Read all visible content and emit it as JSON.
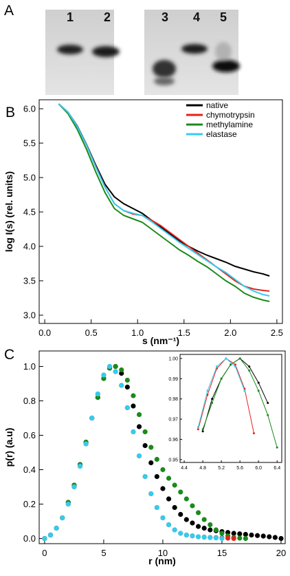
{
  "figure": {
    "panel_labels": [
      "A",
      "B",
      "C"
    ],
    "lanes": [
      "1",
      "2",
      "3",
      "4",
      "5"
    ]
  },
  "chart_data": [
    {
      "type": "line",
      "xlabel": "s (nm⁻¹)",
      "ylabel": "log I(s) (rel. units)",
      "x": [
        0.15,
        0.25,
        0.35,
        0.45,
        0.55,
        0.65,
        0.75,
        0.85,
        0.95,
        1.05,
        1.15,
        1.25,
        1.35,
        1.45,
        1.55,
        1.65,
        1.75,
        1.85,
        1.95,
        2.05,
        2.15,
        2.25,
        2.35,
        2.42
      ],
      "series": [
        {
          "name": "native",
          "color": "#000000",
          "values": [
            6.07,
            5.95,
            5.75,
            5.48,
            5.18,
            4.9,
            4.72,
            4.62,
            4.55,
            4.48,
            4.38,
            4.28,
            4.18,
            4.08,
            4.0,
            3.93,
            3.87,
            3.82,
            3.77,
            3.71,
            3.67,
            3.63,
            3.6,
            3.57
          ]
        },
        {
          "name": "chymotrypsin",
          "color": "#e8201a",
          "values": [
            6.07,
            5.95,
            5.74,
            5.47,
            5.16,
            4.86,
            4.62,
            4.52,
            4.47,
            4.45,
            4.38,
            4.3,
            4.2,
            4.1,
            4.0,
            3.9,
            3.8,
            3.7,
            3.6,
            3.5,
            3.42,
            3.38,
            3.36,
            3.35
          ]
        },
        {
          "name": "methylamine",
          "color": "#1a8a1a",
          "values": [
            6.07,
            5.93,
            5.7,
            5.41,
            5.08,
            4.78,
            4.55,
            4.45,
            4.4,
            4.35,
            4.25,
            4.15,
            4.05,
            3.95,
            3.87,
            3.78,
            3.7,
            3.6,
            3.5,
            3.42,
            3.32,
            3.26,
            3.22,
            3.2
          ]
        },
        {
          "name": "elastase",
          "color": "#33ccee",
          "values": [
            6.07,
            5.95,
            5.74,
            5.47,
            5.15,
            4.86,
            4.62,
            4.52,
            4.48,
            4.45,
            4.36,
            4.26,
            4.16,
            4.06,
            3.97,
            3.88,
            3.79,
            3.7,
            3.62,
            3.52,
            3.42,
            3.35,
            3.3,
            3.28
          ]
        }
      ],
      "xlim": [
        -0.06,
        2.56
      ],
      "ylim": [
        2.88,
        6.13
      ],
      "xticks": [
        {
          "value": 0,
          "label": "0.0"
        },
        0.5,
        {
          "value": 1,
          "label": "1.0"
        },
        1.5,
        {
          "value": 2,
          "label": "2.0"
        },
        2.5
      ],
      "yticks": [
        {
          "value": 3,
          "label": "3.0"
        },
        3.5,
        {
          "value": 4,
          "label": "4.0"
        },
        4.5,
        {
          "value": 5,
          "label": "5.0"
        },
        5.5,
        {
          "value": 6,
          "label": "6.0"
        }
      ],
      "legend": "upper right"
    },
    {
      "type": "scatter",
      "xlabel": "r (nm)",
      "ylabel": "p(r) (a.u)",
      "series": [
        {
          "color": "#000000",
          "x": [
            0,
            0.5,
            1,
            1.5,
            2,
            2.5,
            3,
            3.5,
            4,
            4.5,
            5,
            5.5,
            6,
            6.5,
            7,
            7.5,
            8,
            8.5,
            9,
            9.5,
            10,
            10.5,
            11,
            11.5,
            12,
            12.5,
            13,
            13.5,
            14,
            14.5,
            15,
            15.5,
            16,
            16.5,
            17,
            17.5,
            18,
            18.5,
            19,
            19.5,
            20
          ],
          "values": [
            0,
            0.02,
            0.06,
            0.12,
            0.21,
            0.31,
            0.43,
            0.56,
            0.7,
            0.82,
            0.93,
            0.99,
            1.0,
            0.96,
            0.88,
            0.77,
            0.65,
            0.54,
            0.44,
            0.36,
            0.29,
            0.23,
            0.18,
            0.14,
            0.11,
            0.09,
            0.07,
            0.06,
            0.05,
            0.045,
            0.04,
            0.035,
            0.03,
            0.027,
            0.024,
            0.02,
            0.017,
            0.014,
            0.01,
            0.006,
            0
          ]
        },
        {
          "color": "#1a8a1a",
          "x": [
            0,
            0.5,
            1,
            1.5,
            2,
            2.5,
            3,
            3.5,
            4,
            4.5,
            5,
            5.5,
            6,
            6.5,
            7,
            7.5,
            8,
            8.5,
            9,
            9.5,
            10,
            10.5,
            11,
            11.5,
            12,
            12.5,
            13,
            13.5,
            14,
            14.5,
            15,
            15.5,
            16,
            16.5,
            17
          ],
          "values": [
            0,
            0.02,
            0.06,
            0.12,
            0.21,
            0.31,
            0.43,
            0.56,
            0.7,
            0.82,
            0.93,
            0.99,
            1.0,
            0.98,
            0.92,
            0.83,
            0.72,
            0.62,
            0.53,
            0.46,
            0.4,
            0.35,
            0.31,
            0.27,
            0.23,
            0.19,
            0.15,
            0.11,
            0.08,
            0.05,
            0.03,
            0.015,
            0.006,
            0.002,
            0
          ]
        },
        {
          "color": "#e8201a",
          "x": [
            0,
            0.5,
            1,
            1.5,
            2,
            2.5,
            3,
            3.5,
            4,
            4.5,
            5,
            5.5,
            6,
            6.5,
            7,
            7.5,
            8,
            8.5,
            9,
            9.5,
            10,
            10.5,
            11,
            11.5,
            12,
            12.5,
            13,
            13.5,
            14,
            14.5,
            15,
            15.5,
            16
          ],
          "values": [
            0,
            0.02,
            0.06,
            0.12,
            0.2,
            0.3,
            0.42,
            0.55,
            0.7,
            0.84,
            0.95,
            1.0,
            0.97,
            0.89,
            0.76,
            0.62,
            0.48,
            0.36,
            0.26,
            0.18,
            0.12,
            0.08,
            0.05,
            0.03,
            0.02,
            0.015,
            0.01,
            0.008,
            0.006,
            0.005,
            0.004,
            0.002,
            0
          ]
        },
        {
          "color": "#33ccee",
          "x": [
            0,
            0.5,
            1,
            1.5,
            2,
            2.5,
            3,
            3.5,
            4,
            4.5,
            5,
            5.5,
            6,
            6.5,
            7,
            7.5,
            8,
            8.5,
            9,
            9.5,
            10,
            10.5,
            11,
            11.5,
            12,
            12.5,
            13,
            13.5,
            14,
            14.5,
            15
          ],
          "values": [
            0,
            0.02,
            0.06,
            0.12,
            0.2,
            0.3,
            0.42,
            0.55,
            0.7,
            0.84,
            0.95,
            1.0,
            0.97,
            0.89,
            0.76,
            0.62,
            0.48,
            0.36,
            0.26,
            0.18,
            0.12,
            0.08,
            0.05,
            0.03,
            0.02,
            0.015,
            0.01,
            0.007,
            0.005,
            0.003,
            0
          ]
        }
      ],
      "xlim": [
        -0.46,
        20.35
      ],
      "ylim": [
        -0.03,
        1.09
      ],
      "xticks": [
        0,
        5,
        10,
        15,
        20
      ],
      "yticks": [
        {
          "value": 0,
          "label": "0.0"
        },
        0.2,
        0.4,
        0.6,
        0.8,
        {
          "value": 1,
          "label": "1.0"
        }
      ]
    },
    {
      "type": "line",
      "markers": true,
      "series": [
        {
          "color": "#000000",
          "x": [
            4.8,
            5.0,
            5.2,
            5.4,
            5.6,
            5.8,
            6.0,
            6.2
          ],
          "values": [
            0.964,
            0.98,
            0.99,
            0.997,
            1.0,
            0.996,
            0.988,
            0.978
          ]
        },
        {
          "color": "#1a8a1a",
          "x": [
            4.8,
            5.0,
            5.2,
            5.4,
            5.6,
            5.8,
            6.0,
            6.2,
            6.4
          ],
          "values": [
            0.965,
            0.978,
            0.99,
            0.997,
            1.0,
            0.994,
            0.984,
            0.972,
            0.956
          ]
        },
        {
          "color": "#e8201a",
          "x": [
            4.7,
            4.9,
            5.1,
            5.3,
            5.5,
            5.7,
            5.9
          ],
          "values": [
            0.965,
            0.982,
            0.995,
            1.0,
            0.997,
            0.985,
            0.963
          ]
        },
        {
          "color": "#33ccee",
          "x": [
            4.7,
            4.9,
            5.1,
            5.3,
            5.5,
            5.7
          ],
          "values": [
            0.966,
            0.984,
            0.996,
            1.0,
            0.996,
            0.984
          ]
        }
      ],
      "xlim": [
        4.31,
        6.5
      ],
      "ylim": [
        0.9486,
        1.002
      ],
      "xticks": [
        4.4,
        4.8,
        5.2,
        5.6,
        {
          "value": 6,
          "label": "6.0"
        },
        6.4
      ],
      "yticks": [
        0.95,
        0.96,
        0.97,
        0.98,
        0.99,
        {
          "value": 1,
          "label": "1.00"
        }
      ]
    }
  ]
}
